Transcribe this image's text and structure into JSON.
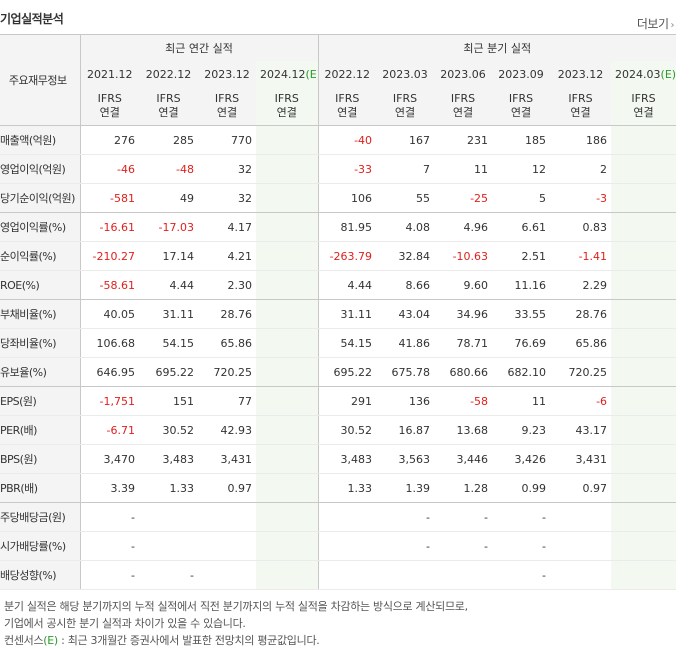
{
  "title": "기업실적분석",
  "more_label": "더보기",
  "header": {
    "row_label": "주요재무정보",
    "annual_group": "최근 연간 실적",
    "quarter_group": "최근 분기 실적",
    "ifrs_label": "IFRS",
    "ifrs_sub": "연결",
    "annual_years": [
      "2021.12",
      "2022.12",
      "2023.12",
      "2024.12"
    ],
    "annual_est_mark": "(E)",
    "quarter_periods": [
      "2022.12",
      "2023.03",
      "2023.06",
      "2023.09",
      "2023.12",
      "2024.03"
    ],
    "quarter_est_mark": "(E)"
  },
  "rows": [
    {
      "label": "매출액(억원)",
      "annual": [
        "276",
        "285",
        "770",
        ""
      ],
      "quarter": [
        "-40",
        "167",
        "231",
        "185",
        "186",
        ""
      ]
    },
    {
      "label": "영업이익(억원)",
      "annual": [
        "-46",
        "-48",
        "32",
        ""
      ],
      "quarter": [
        "-33",
        "7",
        "11",
        "12",
        "2",
        ""
      ]
    },
    {
      "label": "당기순이익(억원)",
      "annual": [
        "-581",
        "49",
        "32",
        ""
      ],
      "quarter": [
        "106",
        "55",
        "-25",
        "5",
        "-3",
        ""
      ]
    },
    {
      "label": "영업이익률(%)",
      "annual": [
        "-16.61",
        "-17.03",
        "4.17",
        ""
      ],
      "quarter": [
        "81.95",
        "4.08",
        "4.96",
        "6.61",
        "0.83",
        ""
      ]
    },
    {
      "label": "순이익률(%)",
      "annual": [
        "-210.27",
        "17.14",
        "4.21",
        ""
      ],
      "quarter": [
        "-263.79",
        "32.84",
        "-10.63",
        "2.51",
        "-1.41",
        ""
      ]
    },
    {
      "label": "ROE(%)",
      "annual": [
        "-58.61",
        "4.44",
        "2.30",
        ""
      ],
      "quarter": [
        "4.44",
        "8.66",
        "9.60",
        "11.16",
        "2.29",
        ""
      ]
    },
    {
      "label": "부채비율(%)",
      "annual": [
        "40.05",
        "31.11",
        "28.76",
        ""
      ],
      "quarter": [
        "31.11",
        "43.04",
        "34.96",
        "33.55",
        "28.76",
        ""
      ]
    },
    {
      "label": "당좌비율(%)",
      "annual": [
        "106.68",
        "54.15",
        "65.86",
        ""
      ],
      "quarter": [
        "54.15",
        "41.86",
        "78.71",
        "76.69",
        "65.86",
        ""
      ]
    },
    {
      "label": "유보율(%)",
      "annual": [
        "646.95",
        "695.22",
        "720.25",
        ""
      ],
      "quarter": [
        "695.22",
        "675.78",
        "680.66",
        "682.10",
        "720.25",
        ""
      ]
    },
    {
      "label": "EPS(원)",
      "annual": [
        "-1,751",
        "151",
        "77",
        ""
      ],
      "quarter": [
        "291",
        "136",
        "-58",
        "11",
        "-6",
        ""
      ]
    },
    {
      "label": "PER(배)",
      "annual": [
        "-6.71",
        "30.52",
        "42.93",
        ""
      ],
      "quarter": [
        "30.52",
        "16.87",
        "13.68",
        "9.23",
        "43.17",
        ""
      ]
    },
    {
      "label": "BPS(원)",
      "annual": [
        "3,470",
        "3,483",
        "3,431",
        ""
      ],
      "quarter": [
        "3,483",
        "3,563",
        "3,446",
        "3,426",
        "3,431",
        ""
      ]
    },
    {
      "label": "PBR(배)",
      "annual": [
        "3.39",
        "1.33",
        "0.97",
        ""
      ],
      "quarter": [
        "1.33",
        "1.39",
        "1.28",
        "0.99",
        "0.97",
        ""
      ]
    },
    {
      "label": "주당배당금(원)",
      "annual": [
        "-",
        "",
        "",
        ""
      ],
      "quarter": [
        "",
        "-",
        "-",
        "-",
        "",
        ""
      ]
    },
    {
      "label": "시가배당률(%)",
      "annual": [
        "-",
        "",
        "",
        ""
      ],
      "quarter": [
        "",
        "-",
        "-",
        "-",
        "",
        ""
      ]
    },
    {
      "label": "배당성향(%)",
      "annual": [
        "-",
        "-",
        "",
        ""
      ],
      "quarter": [
        "",
        "",
        "",
        "-",
        "",
        ""
      ]
    }
  ],
  "notes": {
    "line1": "분기 실적은 해당 분기까지의 누적 실적에서 직전 분기까지의 누적 실적을 차감하는 방식으로 계산되므로,",
    "line2": "기업에서 공시한 분기 실적과 차이가 있을 수 있습니다.",
    "line3_prefix": "컨센서스",
    "line3_mark": "(E)",
    "line3_rest": " : 최근 3개월간 증권사에서 발표한 전망치의 평균값입니다."
  },
  "colors": {
    "negative": "#e0201c",
    "ifrs": "#e05a1a",
    "estimate_bg": "#f3f9f0",
    "estimate_mark": "#2b9a2b"
  }
}
